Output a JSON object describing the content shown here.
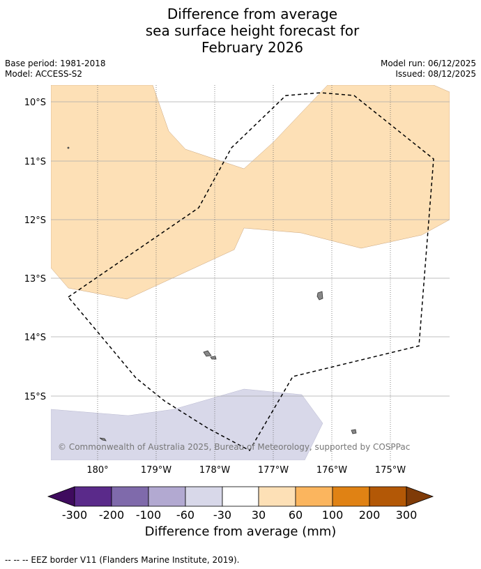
{
  "title": {
    "line1": "Difference from average",
    "line2": "sea surface height forecast for",
    "line3": "February 2026"
  },
  "meta": {
    "base_period": "Base period: 1981-2018",
    "model": "Model: ACCESS-S2",
    "model_run": "Model run: 06/12/2025",
    "issued": "Issued: 08/12/2025"
  },
  "map": {
    "lat_labels": [
      "10°S",
      "11°S",
      "12°S",
      "13°S",
      "14°S",
      "15°S"
    ],
    "lon_labels": [
      "180°",
      "179°W",
      "178°W",
      "177°W",
      "176°W",
      "175°W"
    ],
    "copyright": "© Commonwealth of Australia 2025, Bureau of Meteorology, supported by COSPPac",
    "positive_fill": "#fde0b6",
    "negative_fill": "#d8d8e9"
  },
  "colorbar": {
    "ticks": [
      "-300",
      "-200",
      "-100",
      "-60",
      "-30",
      "30",
      "60",
      "100",
      "200",
      "300"
    ],
    "colors": [
      "#3f0b5e",
      "#5a2a8a",
      "#7f6aab",
      "#b2a9d1",
      "#d8d8e9",
      "#ffffff",
      "#fde0b6",
      "#fbb55e",
      "#e08214",
      "#b35806",
      "#7f3b08"
    ],
    "label": "Difference from average (mm)"
  },
  "footer": {
    "text": "--  --  -- EEZ border V11 (Flanders Marine Institute, 2019)."
  }
}
